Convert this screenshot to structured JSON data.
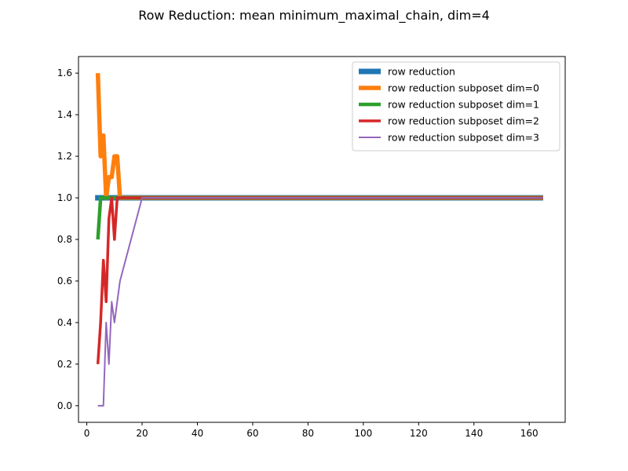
{
  "chart_data": {
    "type": "line",
    "title": "Row Reduction: mean minimum_maximal_chain, dim=4",
    "xlabel": "",
    "ylabel": "",
    "xlim": [
      -3,
      173
    ],
    "ylim": [
      -0.08,
      1.68
    ],
    "xticks": [
      0,
      20,
      40,
      60,
      80,
      100,
      120,
      140,
      160
    ],
    "yticks": [
      0.0,
      0.2,
      0.4,
      0.6,
      0.8,
      1.0,
      1.2,
      1.4,
      1.6
    ],
    "ytick_labels": [
      "0.0",
      "0.2",
      "0.4",
      "0.6",
      "0.8",
      "1.0",
      "1.2",
      "1.4",
      "1.6"
    ],
    "grid": false,
    "legend_position": "top-right",
    "series": [
      {
        "name": "row reduction",
        "color": "#1f77b4",
        "width": 7,
        "x": [
          3,
          165
        ],
        "y": [
          1.0,
          1.0
        ]
      },
      {
        "name": "row reduction subposet dim=0",
        "color": "#ff7f0e",
        "width": 5.5,
        "x": [
          4,
          5,
          6,
          7,
          8,
          9,
          10,
          11,
          12,
          13,
          14,
          15,
          20,
          165
        ],
        "y": [
          1.6,
          1.2,
          1.3,
          1.0,
          1.1,
          1.1,
          1.2,
          1.2,
          1.0,
          1.0,
          1.0,
          1.0,
          1.0,
          1.0
        ]
      },
      {
        "name": "row reduction subposet dim=1",
        "color": "#2ca02c",
        "width": 4.5,
        "x": [
          4,
          5,
          6,
          7,
          8,
          20,
          165
        ],
        "y": [
          0.8,
          1.0,
          1.0,
          1.0,
          1.0,
          1.0,
          1.0
        ]
      },
      {
        "name": "row reduction subposet dim=2",
        "color": "#d62728",
        "width": 3.5,
        "x": [
          4,
          5,
          6,
          7,
          8,
          9,
          10,
          11,
          12,
          20,
          165
        ],
        "y": [
          0.2,
          0.4,
          0.7,
          0.5,
          0.9,
          1.0,
          0.8,
          1.0,
          1.0,
          1.0,
          1.0
        ]
      },
      {
        "name": "row reduction subposet dim=3",
        "color": "#9467bd",
        "width": 2,
        "x": [
          4,
          5,
          6,
          7,
          8,
          9,
          10,
          12,
          20,
          165
        ],
        "y": [
          0.0,
          0.0,
          0.0,
          0.4,
          0.2,
          0.5,
          0.4,
          0.6,
          1.0,
          1.0
        ]
      }
    ]
  }
}
